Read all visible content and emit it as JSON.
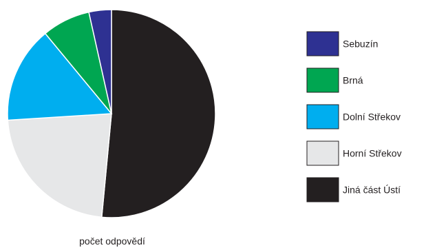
{
  "chart_data": {
    "type": "pie",
    "title": "",
    "xlabel": "počet odpovědí",
    "legend_position": "right",
    "start_angle_deg": 0,
    "direction": "clockwise",
    "slices": [
      {
        "label": "Jiná část Ústí",
        "value": 51.5,
        "color": "#231f20"
      },
      {
        "label": "Horní Střekov",
        "value": 22.5,
        "color": "#e6e7e8"
      },
      {
        "label": "Dolní Střekov",
        "value": 15.0,
        "color": "#00aeef"
      },
      {
        "label": "Brná",
        "value": 7.5,
        "color": "#00a651"
      },
      {
        "label": "Sebuzín",
        "value": 3.5,
        "color": "#2e3192"
      }
    ],
    "legend_order": [
      "Sebuzín",
      "Brná",
      "Dolní Střekov",
      "Horní Střekov",
      "Jiná část Ústí"
    ]
  }
}
